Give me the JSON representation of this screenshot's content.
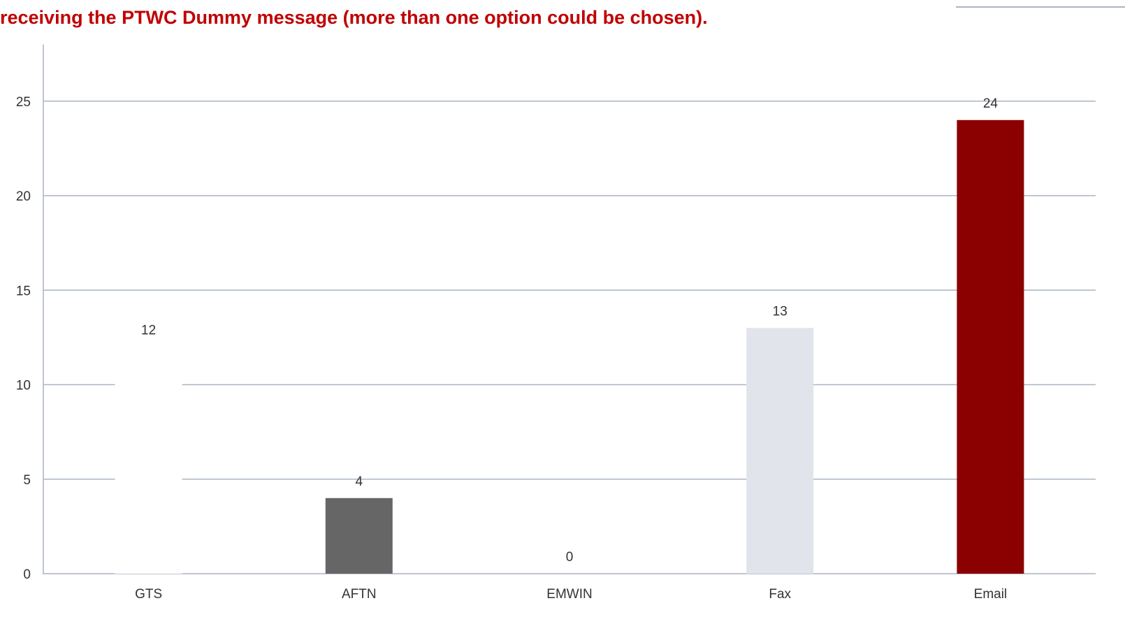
{
  "chart_data": {
    "type": "bar",
    "title": "receiving the PTWC Dummy message (more than one option could be chosen).",
    "categories": [
      "GTS",
      "AFTN",
      "EMWIN",
      "Fax",
      "Email"
    ],
    "values": [
      12,
      4,
      0,
      13,
      24
    ],
    "bar_colors": [
      "#ffffff",
      "#666666",
      "#ffffff",
      "#e1e4ea",
      "#8b0000"
    ],
    "yticks": [
      0,
      5,
      10,
      15,
      20,
      25
    ],
    "ytick_labels": [
      "0",
      "5",
      "10",
      "15",
      "20",
      "25"
    ],
    "ylim": [
      0,
      28
    ],
    "grid": true,
    "legend": "none",
    "xlabel": "",
    "ylabel": ""
  },
  "colors": {
    "title": "#c00000",
    "grid": "#aab4c2",
    "axis": "#aab4c2",
    "text": "#333333"
  }
}
